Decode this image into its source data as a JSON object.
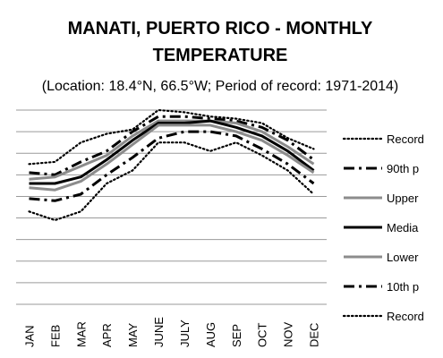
{
  "chart_data": {
    "type": "line",
    "title_lines": [
      "MANATI, PUERTO RICO - MONTHLY",
      "TEMPERATURE"
    ],
    "subtitle": "(Location: 18.4°N, 66.5°W; Period of record: 1971-2014)",
    "xlabel": "",
    "ylabel": "",
    "categories": [
      "JAN",
      "FEB",
      "MAR",
      "APR",
      "MAY",
      "JUNE",
      "JULY",
      "AUG",
      "SEP",
      "OCT",
      "NOV",
      "DEC"
    ],
    "ylim": [
      0,
      9
    ],
    "grid": true,
    "legend_position": "right",
    "series": [
      {
        "name": "Record",
        "style": "dotted",
        "color": "#000000",
        "values": [
          6.5,
          6.6,
          7.5,
          7.9,
          8.1,
          9.0,
          8.9,
          8.7,
          8.6,
          8.4,
          7.7,
          7.2
        ]
      },
      {
        "name": "90th p",
        "style": "dashdot",
        "color": "#000000",
        "values": [
          6.1,
          6.0,
          6.6,
          7.1,
          8.0,
          8.7,
          8.7,
          8.6,
          8.5,
          8.2,
          7.6,
          6.7
        ]
      },
      {
        "name": "Upper",
        "style": "solid-light",
        "color": "#8c8c8c",
        "values": [
          5.8,
          5.9,
          6.4,
          6.9,
          7.8,
          8.5,
          8.5,
          8.5,
          8.4,
          8.0,
          7.3,
          6.5
        ]
      },
      {
        "name": "Media",
        "style": "solid",
        "color": "#000000",
        "values": [
          5.6,
          5.6,
          5.9,
          6.7,
          7.6,
          8.4,
          8.4,
          8.5,
          8.2,
          7.8,
          7.1,
          6.2
        ]
      },
      {
        "name": "Lower",
        "style": "solid-light",
        "color": "#8c8c8c",
        "values": [
          5.4,
          5.3,
          5.7,
          6.5,
          7.4,
          8.3,
          8.3,
          8.3,
          8.0,
          7.6,
          6.9,
          6.1
        ]
      },
      {
        "name": "10th p",
        "style": "dashdot",
        "color": "#000000",
        "values": [
          4.9,
          4.8,
          5.1,
          6.0,
          6.8,
          7.7,
          8.0,
          8.0,
          7.8,
          7.2,
          6.5,
          5.6
        ]
      },
      {
        "name": "Record",
        "style": "dotted",
        "color": "#000000",
        "values": [
          4.3,
          3.9,
          4.3,
          5.6,
          6.2,
          7.5,
          7.5,
          7.1,
          7.5,
          6.9,
          6.2,
          5.1
        ]
      }
    ]
  }
}
